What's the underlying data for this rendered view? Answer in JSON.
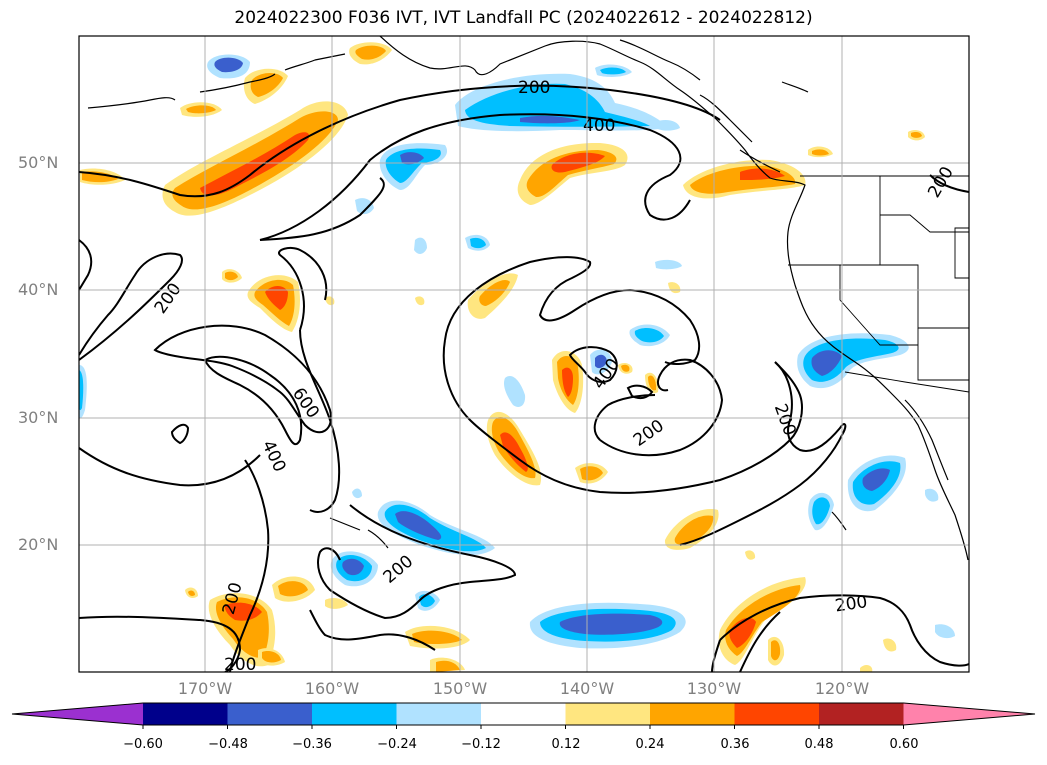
{
  "title": "2024022300 F036 IVT, IVT Landfall PC (2024022612 - 2024022812)",
  "latitude_labels": [
    "50°N",
    "40°N",
    "30°N",
    "20°N"
  ],
  "longitude_labels": [
    "170°W",
    "160°W",
    "150°W",
    "140°W",
    "130°W",
    "120°W"
  ],
  "contour_labels": [
    "200",
    "400",
    "200",
    "200",
    "200",
    "600",
    "400",
    "200",
    "400",
    "200",
    "200",
    "200",
    "200",
    "200"
  ],
  "colorbar": {
    "tick_labels": [
      "−0.60",
      "−0.48",
      "−0.36",
      "−0.24",
      "−0.12",
      "0.12",
      "0.24",
      "0.36",
      "0.48",
      "0.60"
    ],
    "colors": [
      "#9b30d0",
      "#00008b",
      "#3a5fcd",
      "#00bfff",
      "#b0e2ff",
      "#ffffff",
      "#ffe680",
      "#ffa500",
      "#ff4500",
      "#b22222",
      "#ff82ab"
    ]
  },
  "fill_colors": {
    "neg_light": "#b0e2ff",
    "neg_mid": "#00bfff",
    "neg_dark": "#3a5fcd",
    "pos_light": "#ffe680",
    "pos_mid": "#ffa500",
    "pos_dark": "#ff4500"
  }
}
